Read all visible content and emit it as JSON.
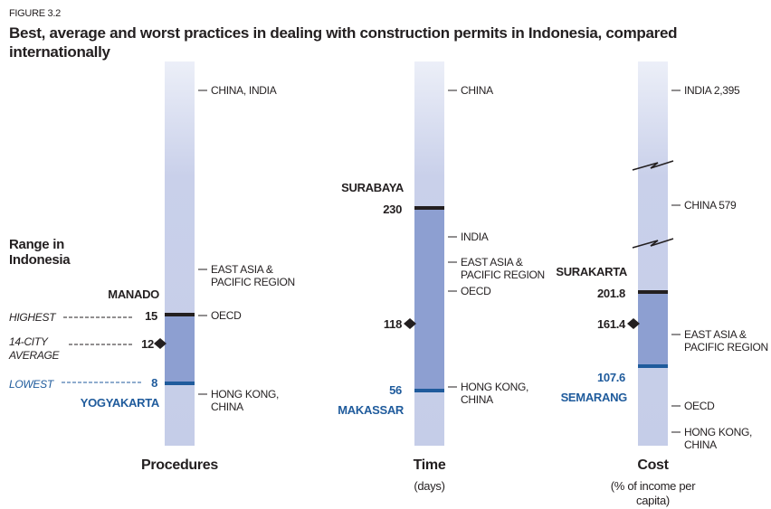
{
  "figure_label": "FIGURE 3.2",
  "title": "Best, average and worst practices in dealing with construction permits in Indonesia, compared internationally",
  "range_label": "Range in Indonesia",
  "legend": {
    "highest": "HIGHEST",
    "average": "14-CITY AVERAGE",
    "lowest": "LOWEST"
  },
  "panels": [
    {
      "name": "Procedures",
      "highest": {
        "city": "MANADO",
        "value": 15
      },
      "average": 12,
      "lowest": {
        "city": "YOGYAKARTA",
        "value": 8
      },
      "benchmarks": [
        "CHINA, INDIA",
        "EAST ASIA & PACIFIC REGION",
        "OECD",
        "HONG KONG, CHINA"
      ]
    },
    {
      "name": "Time",
      "unit": "(days)",
      "highest": {
        "city": "SURABAYA",
        "value": 230
      },
      "average": 118,
      "lowest": {
        "city": "MAKASSAR",
        "value": 56
      },
      "benchmarks": [
        "CHINA",
        "INDIA",
        "EAST ASIA & PACIFIC REGION",
        "OECD",
        "HONG KONG, CHINA"
      ]
    },
    {
      "name": "Cost",
      "unit": "(% of income per capita)",
      "highest": {
        "city": "SURAKARTA",
        "value": 201.8
      },
      "average": 161.4,
      "lowest": {
        "city": "SEMARANG",
        "value": 107.6
      },
      "benchmarks": [
        "INDIA 2,395",
        "CHINA 579",
        "EAST ASIA & PACIFIC REGION",
        "OECD",
        "HONG KONG, CHINA"
      ]
    }
  ]
}
